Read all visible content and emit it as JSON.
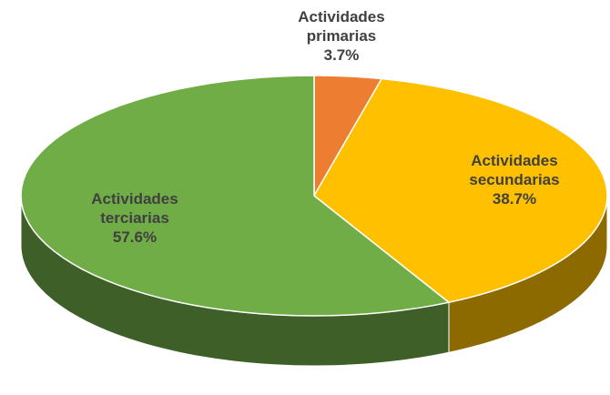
{
  "chart_data": {
    "type": "pie",
    "categories": [
      "Actividades primarias",
      "Actividades secundarias",
      "Actividades terciarias"
    ],
    "values": [
      3.7,
      38.7,
      57.6
    ],
    "value_labels": [
      "3.7%",
      "38.7%",
      "57.6%"
    ],
    "colors": [
      "#ed7d31",
      "#ffc000",
      "#70ad47"
    ]
  }
}
